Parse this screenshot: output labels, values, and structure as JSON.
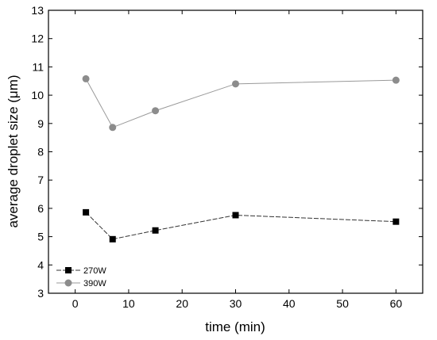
{
  "chart_data": {
    "type": "line",
    "xlabel": "time (min)",
    "ylabel": "average droplet size (μm)",
    "xlim": [
      -5,
      65
    ],
    "ylim": [
      3,
      13
    ],
    "xticks": [
      0,
      10,
      20,
      30,
      40,
      50,
      60
    ],
    "yticks": [
      3,
      4,
      5,
      6,
      7,
      8,
      9,
      10,
      11,
      12,
      13
    ],
    "grid": false,
    "legend_position": "bottom-left",
    "series": [
      {
        "name": "270W",
        "marker": "square",
        "color": "#000000",
        "line_style": "dashed",
        "line_color": "#333333",
        "x": [
          2,
          7,
          15,
          30,
          60
        ],
        "y": [
          5.86,
          4.91,
          5.22,
          5.76,
          5.53
        ]
      },
      {
        "name": "390W",
        "marker": "circle",
        "color": "#8c8c8c",
        "line_style": "solid",
        "line_color": "#999999",
        "x": [
          2,
          7,
          15,
          30,
          60
        ],
        "y": [
          10.58,
          8.86,
          9.45,
          10.4,
          10.53
        ]
      }
    ]
  }
}
